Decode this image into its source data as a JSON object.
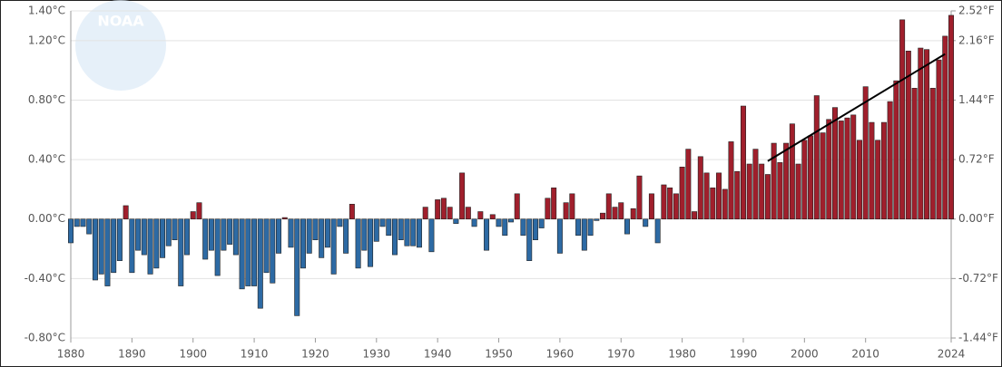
{
  "chart_data": {
    "type": "bar",
    "logo_text": "NOAA",
    "x": [
      1880,
      1881,
      1882,
      1883,
      1884,
      1885,
      1886,
      1887,
      1888,
      1889,
      1890,
      1891,
      1892,
      1893,
      1894,
      1895,
      1896,
      1897,
      1898,
      1899,
      1900,
      1901,
      1902,
      1903,
      1904,
      1905,
      1906,
      1907,
      1908,
      1909,
      1910,
      1911,
      1912,
      1913,
      1914,
      1915,
      1916,
      1917,
      1918,
      1919,
      1920,
      1921,
      1922,
      1923,
      1924,
      1925,
      1926,
      1927,
      1928,
      1929,
      1930,
      1931,
      1932,
      1933,
      1934,
      1935,
      1936,
      1937,
      1938,
      1939,
      1940,
      1941,
      1942,
      1943,
      1944,
      1945,
      1946,
      1947,
      1948,
      1949,
      1950,
      1951,
      1952,
      1953,
      1954,
      1955,
      1956,
      1957,
      1958,
      1959,
      1960,
      1961,
      1962,
      1963,
      1964,
      1965,
      1966,
      1967,
      1968,
      1969,
      1970,
      1971,
      1972,
      1973,
      1974,
      1975,
      1976,
      1977,
      1978,
      1979,
      1980,
      1981,
      1982,
      1983,
      1984,
      1985,
      1986,
      1987,
      1988,
      1989,
      1990,
      1991,
      1992,
      1993,
      1994,
      1995,
      1996,
      1997,
      1998,
      1999,
      2000,
      2001,
      2002,
      2003,
      2004,
      2005,
      2006,
      2007,
      2008,
      2009,
      2010,
      2011,
      2012,
      2013,
      2014,
      2015,
      2016,
      2017,
      2018,
      2019,
      2020,
      2021,
      2022,
      2023,
      2024
    ],
    "values": [
      -0.16,
      -0.05,
      -0.05,
      -0.1,
      -0.41,
      -0.37,
      -0.45,
      -0.36,
      -0.28,
      0.09,
      -0.36,
      -0.21,
      -0.24,
      -0.37,
      -0.33,
      -0.26,
      -0.18,
      -0.14,
      -0.45,
      -0.24,
      0.05,
      0.11,
      -0.27,
      -0.21,
      -0.38,
      -0.21,
      -0.17,
      -0.24,
      -0.47,
      -0.45,
      -0.45,
      -0.6,
      -0.36,
      -0.43,
      -0.23,
      0.01,
      -0.19,
      -0.65,
      -0.33,
      -0.23,
      -0.14,
      -0.26,
      -0.19,
      -0.37,
      -0.05,
      -0.23,
      0.1,
      -0.33,
      -0.21,
      -0.32,
      -0.15,
      -0.05,
      -0.11,
      -0.24,
      -0.14,
      -0.18,
      -0.18,
      -0.19,
      0.08,
      -0.22,
      0.13,
      0.14,
      0.08,
      -0.03,
      0.31,
      0.08,
      -0.05,
      0.05,
      -0.21,
      0.03,
      -0.05,
      -0.11,
      -0.02,
      0.17,
      -0.11,
      -0.28,
      -0.14,
      -0.06,
      0.14,
      0.21,
      -0.23,
      0.11,
      0.17,
      -0.11,
      -0.21,
      -0.11,
      -0.01,
      0.04,
      0.17,
      0.08,
      0.11,
      -0.1,
      0.07,
      0.29,
      -0.05,
      0.17,
      -0.16,
      0.23,
      0.21,
      0.17,
      0.35,
      0.47,
      0.05,
      0.42,
      0.31,
      0.21,
      0.31,
      0.2,
      0.52,
      0.32,
      0.76,
      0.37,
      0.47,
      0.37,
      0.3,
      0.51,
      0.38,
      0.51,
      0.64,
      0.37,
      0.53,
      0.56,
      0.83,
      0.58,
      0.67,
      0.75,
      0.66,
      0.68,
      0.7,
      0.53,
      0.89,
      0.65,
      0.53,
      0.65,
      0.79,
      0.93,
      1.34,
      1.13,
      0.88,
      1.15,
      1.14,
      0.88,
      1.07,
      1.23,
      1.37
    ],
    "positive_color": "#a01f2c",
    "negative_color": "#2d6aa4",
    "trend": {
      "x": [
        1994,
        2023
      ],
      "values": [
        0.39,
        1.11
      ],
      "color": "#000000"
    },
    "xlim": [
      1880,
      2024
    ],
    "xticks": [
      1880,
      1890,
      1900,
      1910,
      1920,
      1930,
      1940,
      1950,
      1960,
      1970,
      1980,
      1990,
      2000,
      2010,
      2024
    ],
    "ylim": [
      -0.8,
      1.4
    ],
    "yticks": [
      {
        "value": -0.8,
        "label": "-0.80°C"
      },
      {
        "value": -0.4,
        "label": "-0.40°C"
      },
      {
        "value": 0,
        "label": "0.00°C"
      },
      {
        "value": 0.4,
        "label": "0.40°C"
      },
      {
        "value": 0.8,
        "label": "0.80°C"
      },
      {
        "value": 1.2,
        "label": "1.20°C"
      },
      {
        "value": 1.4,
        "label": "1.40°C"
      }
    ],
    "y2lim": [
      -1.44,
      2.52
    ],
    "y2ticks": [
      {
        "value": -1.44,
        "label": "-1.44°F"
      },
      {
        "value": -0.72,
        "label": "-0.72°F"
      },
      {
        "value": 0,
        "label": "0.00°F"
      },
      {
        "value": 0.72,
        "label": "0.72°F"
      },
      {
        "value": 1.44,
        "label": "1.44°F"
      },
      {
        "value": 2.16,
        "label": "2.16°F"
      },
      {
        "value": 2.52,
        "label": "2.52°F"
      }
    ],
    "grid": true
  }
}
